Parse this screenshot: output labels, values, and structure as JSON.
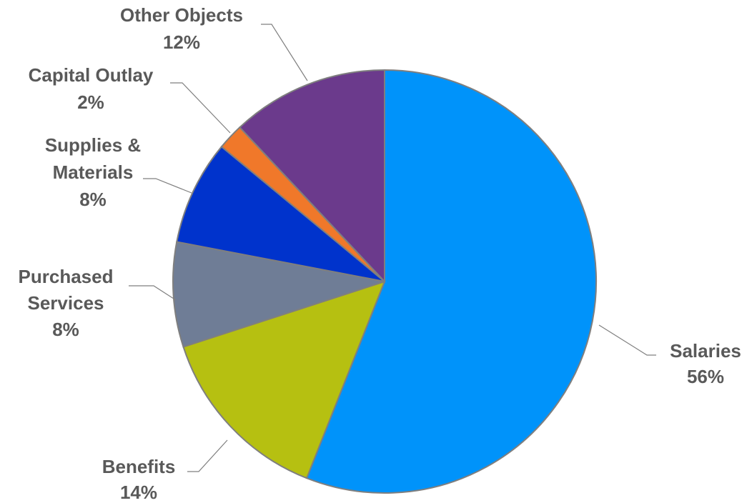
{
  "chart_data": {
    "type": "pie",
    "title": "",
    "slices": [
      {
        "name": "Salaries",
        "value": 56,
        "label": "56%",
        "color": "#0093fa"
      },
      {
        "name": "Benefits",
        "value": 14,
        "label": "14%",
        "color": "#b6c011"
      },
      {
        "name": "Purchased Services",
        "value": 8,
        "label": "8%",
        "color": "#6f7d96"
      },
      {
        "name": "Supplies & Materials",
        "value": 8,
        "label": "8%",
        "color": "#0033cc"
      },
      {
        "name": "Capital Outlay",
        "value": 2,
        "label": "2%",
        "color": "#f0782a"
      },
      {
        "name": "Other Objects",
        "value": 12,
        "label": "12%",
        "color": "#6b3a8c"
      }
    ],
    "labels": {
      "salaries": {
        "line1": "Salaries",
        "pct": "56%"
      },
      "benefits": {
        "line1": "Benefits",
        "pct": "14%"
      },
      "purchased": {
        "line1": "Purchased",
        "line2": "Services",
        "pct": "8%"
      },
      "supplies": {
        "line1": "Supplies &",
        "line2": "Materials",
        "pct": "8%"
      },
      "capital": {
        "line1": "Capital Outlay",
        "pct": "2%"
      },
      "other": {
        "line1": "Other Objects",
        "pct": "12%"
      }
    }
  }
}
